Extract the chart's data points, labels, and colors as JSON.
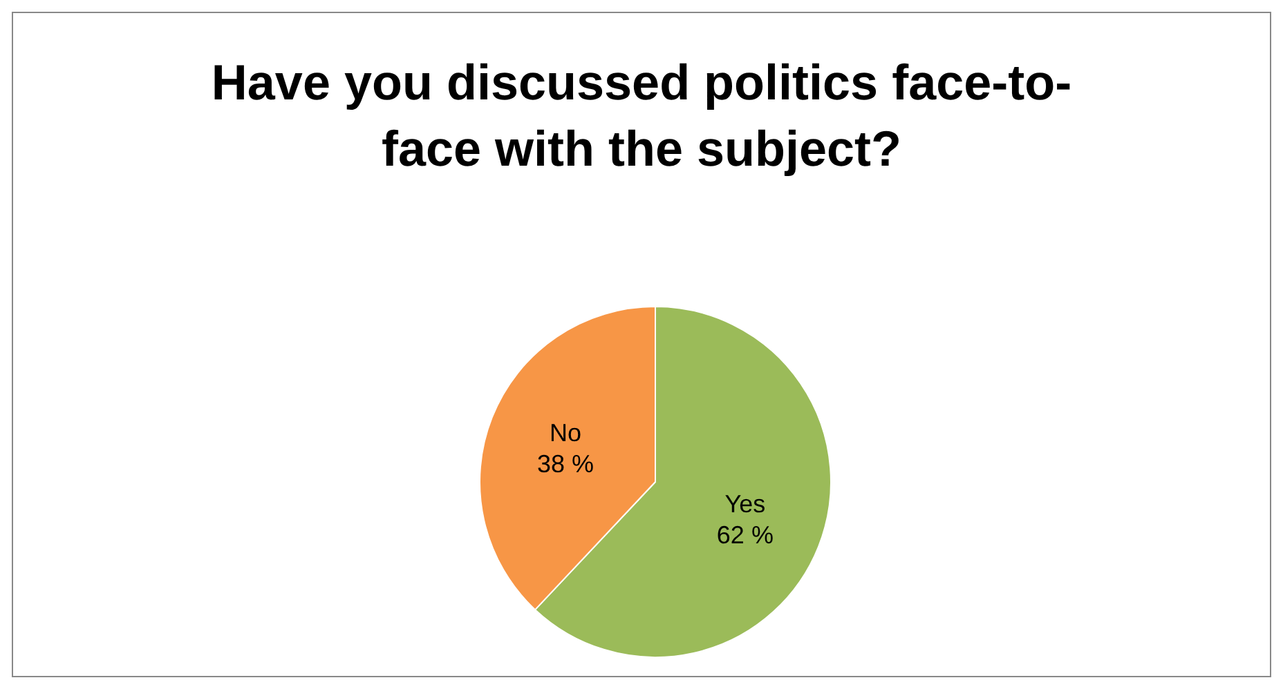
{
  "chart_data": {
    "type": "pie",
    "title": "Have you discussed politics face-to-face with the subject?",
    "categories": [
      "Yes",
      "No"
    ],
    "values": [
      62,
      38
    ],
    "colors": [
      "#9bbb59",
      "#f79646"
    ],
    "value_labels": [
      "62 %",
      "38 %"
    ]
  }
}
